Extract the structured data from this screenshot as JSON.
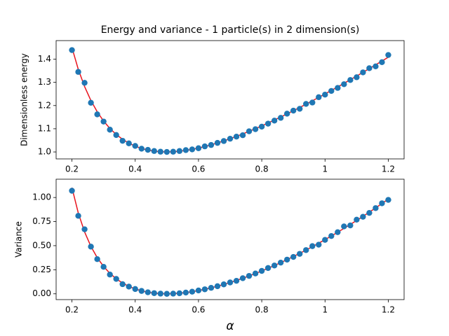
{
  "chart_data": [
    {
      "type": "scatter",
      "title": "Energy and variance - 1 particle(s) in 2 dimension(s)",
      "ylabel": "Dimensionless energy",
      "x": [
        0.2,
        0.22,
        0.24,
        0.26,
        0.28,
        0.3,
        0.32,
        0.34,
        0.36,
        0.38,
        0.4,
        0.42,
        0.44,
        0.46,
        0.48,
        0.5,
        0.52,
        0.54,
        0.56,
        0.58,
        0.6,
        0.62,
        0.64,
        0.66,
        0.68,
        0.7,
        0.72,
        0.74,
        0.76,
        0.78,
        0.8,
        0.82,
        0.84,
        0.86,
        0.88,
        0.9,
        0.92,
        0.94,
        0.96,
        0.98,
        1.0,
        1.02,
        1.04,
        1.06,
        1.08,
        1.1,
        1.12,
        1.14,
        1.16,
        1.18,
        1.2
      ],
      "series": [
        {
          "kind": "points",
          "color": "#1f77b4",
          "values": [
            1.439,
            1.345,
            1.298,
            1.212,
            1.162,
            1.131,
            1.096,
            1.073,
            1.048,
            1.037,
            1.026,
            1.014,
            1.009,
            1.004,
            1.001,
            1.0,
            1.001,
            1.004,
            1.008,
            1.011,
            1.016,
            1.024,
            1.03,
            1.039,
            1.047,
            1.057,
            1.066,
            1.072,
            1.089,
            1.098,
            1.109,
            1.122,
            1.135,
            1.147,
            1.165,
            1.178,
            1.186,
            1.207,
            1.213,
            1.236,
            1.247,
            1.263,
            1.276,
            1.292,
            1.31,
            1.322,
            1.343,
            1.361,
            1.369,
            1.387,
            1.418
          ]
        },
        {
          "kind": "line",
          "color": "#e8141e",
          "values": [
            1.45,
            1.3564,
            1.2817,
            1.2215,
            1.1729,
            1.1333,
            1.1013,
            1.0753,
            1.0544,
            1.0379,
            1.025,
            1.0152,
            1.0082,
            1.0035,
            1.0008,
            1.0,
            1.0008,
            1.003,
            1.0064,
            1.011,
            1.0167,
            1.0232,
            1.0306,
            1.0388,
            1.0476,
            1.0571,
            1.0672,
            1.0778,
            1.0889,
            1.1005,
            1.1125,
            1.1249,
            1.1376,
            1.1507,
            1.1641,
            1.1778,
            1.1917,
            1.206,
            1.2204,
            1.2351,
            1.25,
            1.2651,
            1.2804,
            1.2958,
            1.3115,
            1.3273,
            1.3432,
            1.3593,
            1.3755,
            1.3919,
            1.4083
          ]
        }
      ],
      "xlim": [
        0.15,
        1.25
      ],
      "xticks": [
        0.2,
        0.4,
        0.6,
        0.8,
        1.0,
        1.2
      ],
      "ylim": [
        0.97,
        1.48
      ],
      "yticks": [
        {
          "value": 1.0,
          "label": "1.0"
        },
        {
          "value": 1.1,
          "label": "1.1"
        },
        {
          "value": 1.2,
          "label": "1.2"
        },
        {
          "value": 1.3,
          "label": "1.3"
        },
        {
          "value": 1.4,
          "label": "1.4"
        }
      ]
    },
    {
      "type": "scatter",
      "ylabel": "Variance",
      "xlabel": "α",
      "x": [
        0.2,
        0.22,
        0.24,
        0.26,
        0.28,
        0.3,
        0.32,
        0.34,
        0.36,
        0.38,
        0.4,
        0.42,
        0.44,
        0.46,
        0.48,
        0.5,
        0.52,
        0.54,
        0.56,
        0.58,
        0.6,
        0.62,
        0.64,
        0.66,
        0.68,
        0.7,
        0.72,
        0.74,
        0.76,
        0.78,
        0.8,
        0.82,
        0.84,
        0.86,
        0.88,
        0.9,
        0.92,
        0.94,
        0.96,
        0.98,
        1.0,
        1.02,
        1.04,
        1.06,
        1.08,
        1.1,
        1.12,
        1.14,
        1.16,
        1.18,
        1.2
      ],
      "series": [
        {
          "kind": "points",
          "color": "#1f77b4",
          "values": [
            1.07,
            0.81,
            0.67,
            0.49,
            0.36,
            0.28,
            0.2,
            0.155,
            0.1,
            0.075,
            0.05,
            0.03,
            0.016,
            0.007,
            0.002,
            0.0,
            0.002,
            0.006,
            0.013,
            0.022,
            0.035,
            0.047,
            0.062,
            0.079,
            0.098,
            0.118,
            0.135,
            0.162,
            0.186,
            0.211,
            0.238,
            0.268,
            0.294,
            0.324,
            0.355,
            0.383,
            0.415,
            0.454,
            0.495,
            0.51,
            0.56,
            0.6,
            0.64,
            0.7,
            0.71,
            0.77,
            0.8,
            0.84,
            0.89,
            0.94,
            0.975
          ]
        },
        {
          "kind": "line",
          "color": "#e8141e",
          "values": [
            1.1025,
            0.8397,
            0.6427,
            0.4922,
            0.3756,
            0.2844,
            0.2128,
            0.1563,
            0.1119,
            0.0772,
            0.0506,
            0.0307,
            0.0164,
            0.007,
            0.0017,
            0.0,
            0.0015,
            0.0059,
            0.0129,
            0.0222,
            0.0336,
            0.047,
            0.0622,
            0.0791,
            0.0976,
            0.1176,
            0.139,
            0.1617,
            0.1858,
            0.2111,
            0.2377,
            0.2654,
            0.2942,
            0.3241,
            0.3551,
            0.3872,
            0.4202,
            0.4543,
            0.4894,
            0.5255,
            0.5625,
            0.6005,
            0.6394,
            0.6792,
            0.72,
            0.7617,
            0.8042,
            0.8477,
            0.892,
            0.9373,
            0.9834
          ]
        }
      ],
      "xlim": [
        0.15,
        1.25
      ],
      "xticks": [
        0.2,
        0.4,
        0.6,
        0.8,
        1.0,
        1.2
      ],
      "ylim": [
        -0.06,
        1.19
      ],
      "yticks": [
        {
          "value": 0,
          "label": "0.00"
        },
        {
          "value": 0.25,
          "label": "0.25"
        },
        {
          "value": 0.5,
          "label": "0.50"
        },
        {
          "value": 0.75,
          "label": "0.75"
        },
        {
          "value": 1.0,
          "label": "1.00"
        }
      ]
    }
  ]
}
